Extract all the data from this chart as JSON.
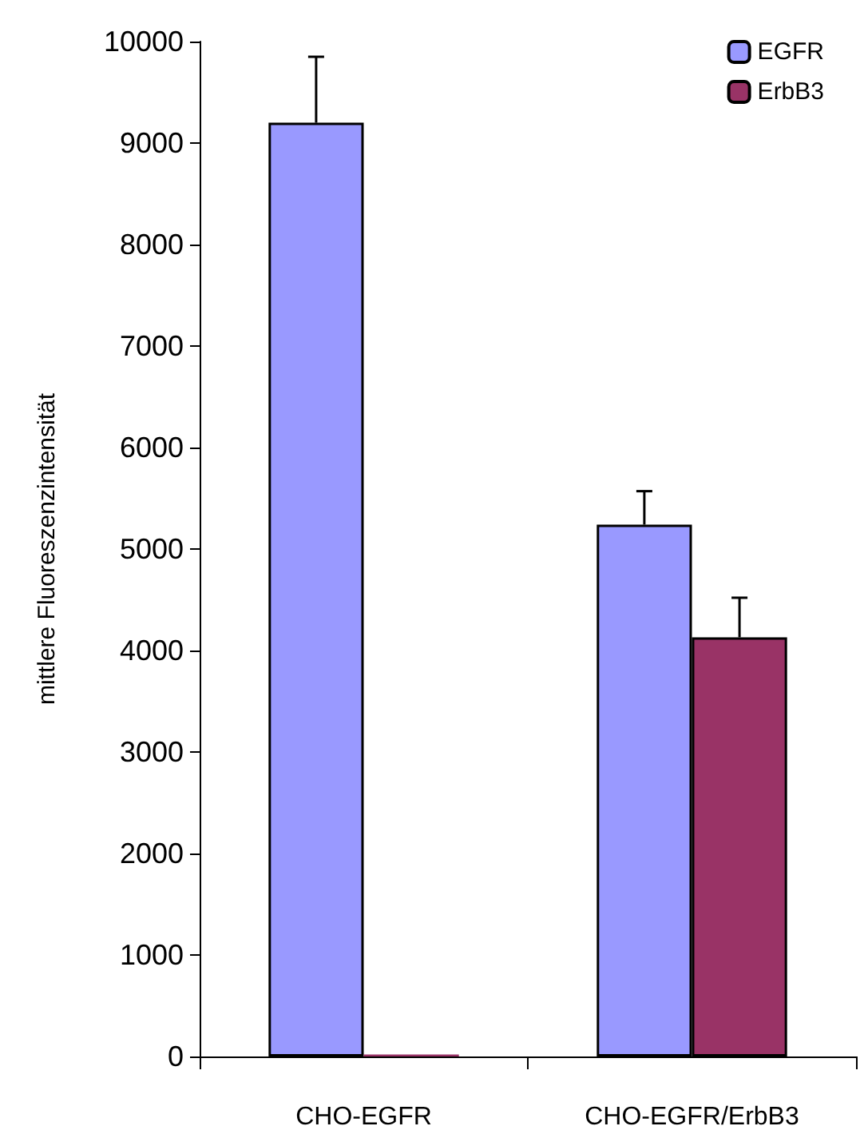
{
  "chart_data": {
    "type": "bar",
    "ylabel": "mittlere Fluoreszenzintensität",
    "categories": [
      "CHO-EGFR",
      "CHO-EGFR/ErbB3"
    ],
    "series": [
      {
        "name": "EGFR",
        "color": "#9999ff",
        "values": [
          9200,
          5240
        ],
        "errors": [
          [
            9200,
            9850
          ],
          [
            5240,
            5570
          ]
        ]
      },
      {
        "name": "ErbB3",
        "color": "#993366",
        "values": [
          20,
          4130
        ],
        "errors": [
          null,
          [
            4130,
            4520
          ]
        ]
      }
    ],
    "ylim": [
      0,
      10000
    ],
    "yticks": [
      0,
      1000,
      2000,
      3000,
      4000,
      5000,
      6000,
      7000,
      8000,
      9000,
      10000
    ],
    "grid": false,
    "legend": "top right"
  }
}
